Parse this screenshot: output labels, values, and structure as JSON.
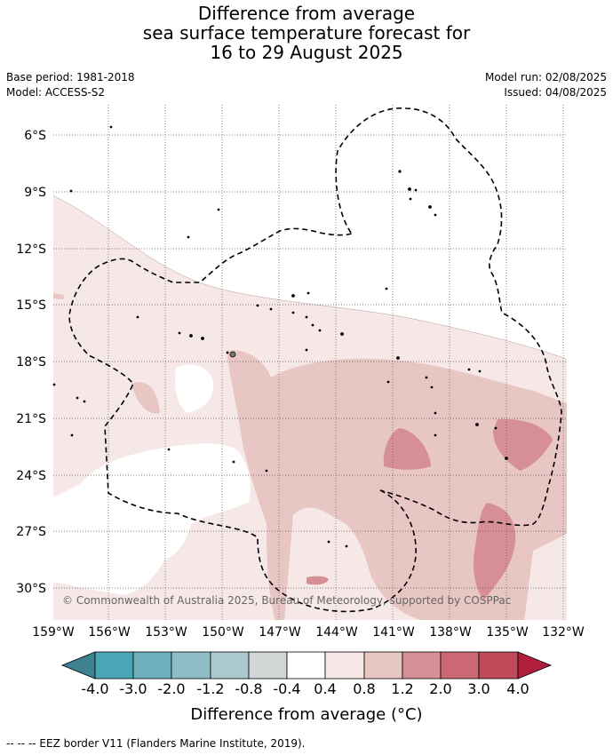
{
  "title": {
    "line1": "Difference from average",
    "line2": "sea surface temperature forecast for",
    "line3": "16 to 29 August 2025"
  },
  "meta_left": {
    "base_period": "Base period: 1981-2018",
    "model": "Model: ACCESS-S2"
  },
  "meta_right": {
    "model_run": "Model run: 02/08/2025",
    "issued": "Issued: 04/08/2025"
  },
  "map": {
    "lat_labels": [
      "6°S",
      "9°S",
      "12°S",
      "15°S",
      "18°S",
      "21°S",
      "24°S",
      "27°S",
      "30°S"
    ],
    "lon_labels": [
      "159°W",
      "156°W",
      "153°W",
      "150°W",
      "147°W",
      "144°W",
      "141°W",
      "138°W",
      "135°W",
      "132°W"
    ],
    "copyright": "© Commonwealth of Australia 2025, Bureau of Meteorology, supported by COSPPac"
  },
  "colorbar": {
    "colors": [
      "#3d8290",
      "#4aa5b5",
      "#6cb0bd",
      "#8fbdc7",
      "#abc9cd",
      "#d2d7d8",
      "#ffffff",
      "#f6e8e7",
      "#e8c6c3",
      "#d78f96",
      "#cb6873",
      "#c0495a",
      "#b11f3d"
    ],
    "ticks": [
      "-4.0",
      "-3.0",
      "-2.0",
      "-1.2",
      "-0.8",
      "-0.4",
      "0.4",
      "0.8",
      "1.2",
      "2.0",
      "3.0",
      "4.0"
    ],
    "title": "Difference from average (°C)"
  },
  "footer": {
    "legend": "-- -- -- EEZ border V11 (Flanders Marine Institute, 2019)."
  }
}
